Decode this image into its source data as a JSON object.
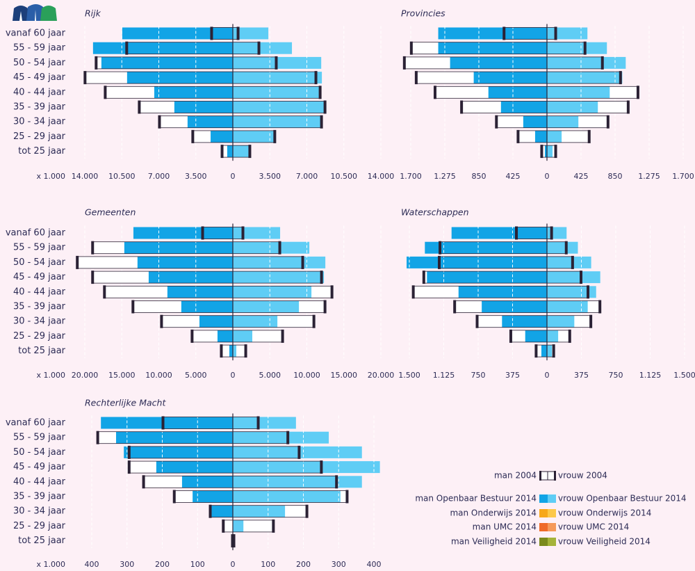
{
  "chart_data": [
    {
      "type": "pyramid",
      "title": "Rijk",
      "xlabel": "x 1.000",
      "categories": [
        "vanaf 60 jaar",
        "55 - 59 jaar",
        "50 - 54 jaar",
        "45 - 49 jaar",
        "40 - 44 jaar",
        "35 - 39 jaar",
        "30 - 34 jaar",
        "25 - 29 jaar",
        "tot 25 jaar"
      ],
      "man_2004": [
        2040,
        10070,
        12960,
        14010,
        12100,
        8880,
        6970,
        3820,
        1050
      ],
      "vrouw_2004": [
        530,
        2500,
        4140,
        7890,
        8290,
        8750,
        8420,
        4000,
        1640
      ],
      "man_2014": [
        10460,
        13220,
        12430,
        10000,
        7430,
        5530,
        4280,
        2100,
        530
      ],
      "vrouw_2014": [
        3360,
        5590,
        8360,
        8420,
        8360,
        8620,
        8290,
        3950,
        1510
      ],
      "man_color": "#12a4e6",
      "vrouw_color": "#5fcdf5",
      "xlim": [
        -14000,
        14000
      ],
      "xticks": [
        {
          "value": -14000,
          "label": "14.000"
        },
        {
          "value": -10500,
          "label": "10.500"
        },
        {
          "value": -7000,
          "label": "7.000"
        },
        {
          "value": -3500,
          "label": "3.500"
        },
        0,
        {
          "value": 3500,
          "label": "3.500"
        },
        {
          "value": 7000,
          "label": "7.000"
        },
        {
          "value": 10500,
          "label": "10.500"
        },
        {
          "value": 14000,
          "label": "14.000"
        }
      ],
      "grid": true
    },
    {
      "type": "pyramid",
      "title": "Provincies",
      "man_2004": [
        540,
        1697,
        1784,
        1636,
        1401,
        1070,
        635,
        365,
        70
      ],
      "vrouw_2004": [
        113,
        479,
        696,
        922,
        1140,
        1018,
        766,
        531,
        113
      ],
      "man_2014": [
        1357,
        1357,
        1209,
        914,
        731,
        574,
        296,
        148,
        26
      ],
      "vrouw_2014": [
        505,
        748,
        983,
        940,
        783,
        635,
        392,
        183,
        70
      ],
      "man_color": "#12a4e6",
      "vrouw_color": "#5fcdf5",
      "xlim": [
        -1700,
        1700
      ],
      "xticks": [
        {
          "value": -1700,
          "label": "1.700"
        },
        {
          "value": -1275,
          "label": "1.275"
        },
        {
          "value": -850,
          "label": "850"
        },
        {
          "value": -425,
          "label": "425"
        },
        0,
        425,
        850,
        {
          "value": 1275,
          "label": "1.275"
        },
        {
          "value": 1700,
          "label": "1.700"
        }
      ],
      "grid": true
    },
    {
      "type": "pyramid",
      "title": "Gemeenten",
      "xlabel": "x 1.000",
      "categories": [
        "vanaf 60 jaar",
        "55 - 59 jaar",
        "50 - 54 jaar",
        "45 - 49 jaar",
        "40 - 44 jaar",
        "35 - 39 jaar",
        "30 - 34 jaar",
        "25 - 29 jaar",
        "tot 25 jaar"
      ],
      "man_2004": [
        4130,
        18990,
        21060,
        18990,
        17390,
        13540,
        9680,
        5550,
        1600
      ],
      "vrouw_2004": [
        1410,
        6390,
        9490,
        12030,
        13440,
        12500,
        11000,
        6770,
        1790
      ],
      "man_2014": [
        13430,
        14660,
        12880,
        11370,
        8840,
        6960,
        4510,
        2070,
        470
      ],
      "vrouw_2014": [
        6390,
        10340,
        12500,
        12310,
        10620,
        8930,
        6020,
        2630,
        470
      ],
      "man_color": "#12a4e6",
      "vrouw_color": "#5fcdf5",
      "xlim": [
        -20000,
        20000
      ],
      "xticks": [
        {
          "value": -20000,
          "label": "20.000"
        },
        {
          "value": -15000,
          "label": "15.000"
        },
        {
          "value": -10000,
          "label": "10.000"
        },
        {
          "value": -5000,
          "label": "5.000"
        },
        0,
        {
          "value": 5000,
          "label": "5.000"
        },
        {
          "value": 10000,
          "label": "10.000"
        },
        {
          "value": 15000,
          "label": "15.000"
        },
        {
          "value": 20000,
          "label": "20.000"
        }
      ],
      "grid": true
    },
    {
      "type": "pyramid",
      "title": "Waterschappen",
      "man_2004": [
        337,
        1170,
        1178,
        1346,
        1461,
        1010,
        765,
        398,
        122
      ],
      "vrouw_2004": [
        54,
        214,
        283,
        375,
        451,
        581,
        482,
        252,
        77
      ],
      "man_2014": [
        1040,
        1331,
        1530,
        1308,
        964,
        711,
        490,
        237,
        61
      ],
      "vrouw_2014": [
        214,
        337,
        482,
        581,
        536,
        444,
        298,
        122,
        54
      ],
      "man_color": "#12a4e6",
      "vrouw_color": "#5fcdf5",
      "xlim": [
        -1500,
        1500
      ],
      "xticks": [
        {
          "value": -1500,
          "label": "1.500"
        },
        {
          "value": -1125,
          "label": "1.125"
        },
        {
          "value": -750,
          "label": "750"
        },
        {
          "value": -375,
          "label": "375"
        },
        0,
        375,
        750,
        {
          "value": 1125,
          "label": "1.125"
        },
        {
          "value": 1500,
          "label": "1.500"
        }
      ],
      "grid": true
    },
    {
      "type": "pyramid",
      "title": "Rechterlijke Macht",
      "xlabel": "x 1.000",
      "categories": [
        "vanaf 60 jaar",
        "55 - 59 jaar",
        "50 - 54 jaar",
        "45 - 49 jaar",
        "40 - 44 jaar",
        "35 - 39 jaar",
        "30 - 34 jaar",
        "25 - 29 jaar",
        "tot 25 jaar"
      ],
      "man_2004": [
        199,
        384,
        295,
        295,
        254,
        167,
        65,
        28,
        2
      ],
      "vrouw_2004": [
        73,
        157,
        189,
        252,
        295,
        325,
        211,
        116,
        4
      ],
      "man_2014": [
        374,
        331,
        309,
        217,
        144,
        114,
        65,
        0,
        0
      ],
      "vrouw_2014": [
        179,
        272,
        366,
        417,
        366,
        305,
        148,
        30,
        0
      ],
      "man_color": "#12a4e6",
      "vrouw_color": "#5fcdf5",
      "xlim": [
        -400,
        400
      ],
      "xticks": [
        {
          "value": -400,
          "label": "400"
        },
        {
          "value": -300,
          "label": "300"
        },
        {
          "value": -200,
          "label": "200"
        },
        {
          "value": -100,
          "label": "100"
        },
        0,
        100,
        200,
        300,
        400
      ],
      "grid": true
    }
  ],
  "legend": [
    {
      "man": "man 2004",
      "vrouw": "vrouw 2004",
      "outline": true
    },
    {
      "man": "man Openbaar Bestuur 2014",
      "vrouw": "vrouw Openbaar Bestuur 2014",
      "man_color": "#12a4e6",
      "vrouw_color": "#5fcdf5"
    },
    {
      "man": "man Onderwijs 2014",
      "vrouw": "vrouw Onderwijs 2014",
      "man_color": "#f7a81b",
      "vrouw_color": "#fcc84a"
    },
    {
      "man": "man UMC 2014",
      "vrouw": "vrouw UMC 2014",
      "man_color": "#ef6a28",
      "vrouw_color": "#f59a5a"
    },
    {
      "man": "man Veiligheid 2014",
      "vrouw": "vrouw Veiligheid 2014",
      "man_color": "#7a8a1c",
      "vrouw_color": "#a5b33a"
    }
  ]
}
